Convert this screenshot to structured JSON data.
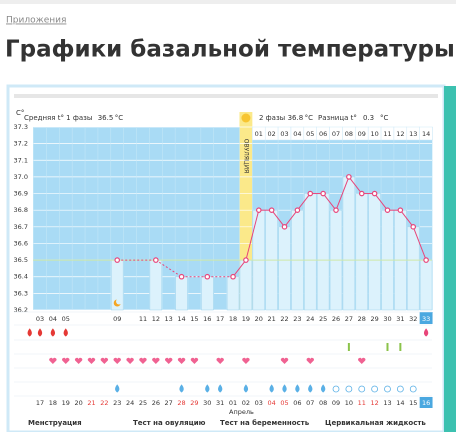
{
  "header": {
    "breadcrumb": "Приложения",
    "title": "Графики базальной температуры"
  },
  "chart_data": {
    "type": "line",
    "y_unit": "C°",
    "phase1": {
      "label": "Средняя t° 1 фазы",
      "value": 36.5,
      "unit": "°C"
    },
    "phase2": {
      "label": "2 фазы",
      "value": 36.8,
      "unit": "°C"
    },
    "difference": {
      "label": "Разница t°",
      "value": 0.3,
      "unit": "°C"
    },
    "ovulation": {
      "label": "ОВУЛЯЦИЯ",
      "day": "19",
      "color": "#fbe98a"
    },
    "phase2_days": [
      "01",
      "02",
      "03",
      "04",
      "05",
      "06",
      "07",
      "08",
      "09",
      "10",
      "11",
      "12",
      "13",
      "14"
    ],
    "categories": [
      "03",
      "04",
      "05",
      null,
      null,
      null,
      "09",
      null,
      "11",
      "12",
      "13",
      "14",
      "15",
      "16",
      "17",
      "18",
      "19",
      "20",
      "21",
      "22",
      "23",
      "24",
      "25",
      "26",
      "27",
      "28",
      "29",
      "30",
      "31",
      "32",
      "33"
    ],
    "highlight_day": "33",
    "values": [
      null,
      null,
      null,
      null,
      null,
      null,
      36.5,
      null,
      null,
      36.5,
      null,
      36.4,
      null,
      36.4,
      null,
      36.4,
      36.5,
      36.8,
      36.8,
      36.7,
      36.8,
      36.9,
      36.9,
      36.8,
      37.0,
      36.9,
      36.9,
      36.8,
      36.8,
      36.7,
      36.5
    ],
    "color": "#e8457a",
    "bar_color": "#dcf2fc",
    "background": "#a9dbf5",
    "coverline": 36.5,
    "ylim": [
      36.2,
      37.3
    ],
    "yticks": [
      36.2,
      36.3,
      36.4,
      36.5,
      36.6,
      36.7,
      36.8,
      36.9,
      {
        "value": 37.0,
        "label": "37.0"
      },
      37.1,
      37.2,
      37.3
    ],
    "grid": true,
    "dates": [
      "17",
      "18",
      "19",
      "20",
      "21",
      "22",
      "23",
      "24",
      "25",
      "26",
      "27",
      "28",
      "29",
      "30",
      "31",
      "01",
      "02",
      "03",
      "04",
      "05",
      "06",
      "07",
      "08",
      "09",
      "10",
      "11",
      "12",
      "13",
      "14",
      "15",
      "16"
    ],
    "date_colors": [
      "#333",
      "#333",
      "#333",
      "#333",
      "#e53935",
      "#e53935",
      "#333",
      "#333",
      "#333",
      "#333",
      "#333",
      "#e53935",
      "#e53935",
      "#333",
      "#333",
      "#333",
      "#333",
      "#333",
      "#e53935",
      "#e53935",
      "#333",
      "#333",
      "#333",
      "#333",
      "#333",
      "#e53935",
      "#e53935",
      "#333",
      "#333",
      "#333",
      "#333"
    ],
    "month_label": "Апрель",
    "legend": [
      "Менструация",
      "Тест на овуляцию",
      "Тест на беременность",
      "Цервикальная жидкость"
    ]
  }
}
